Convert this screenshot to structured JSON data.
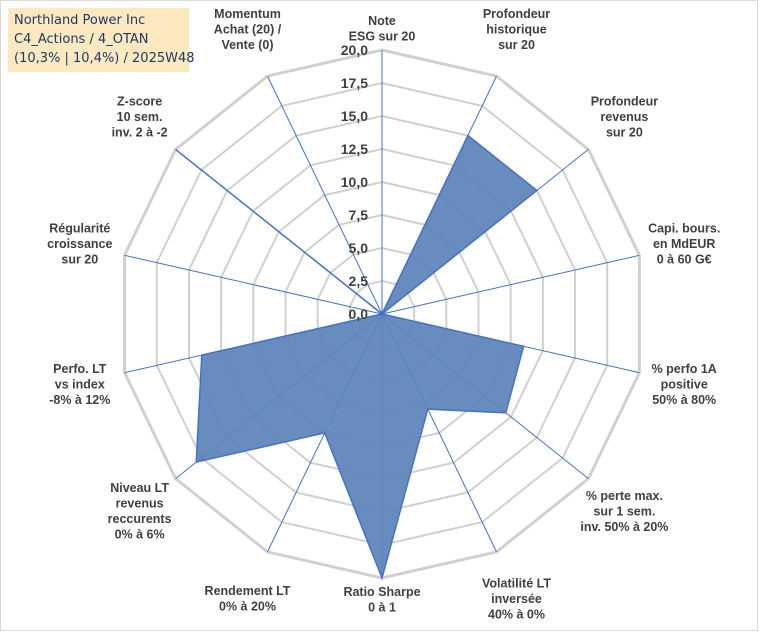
{
  "title": {
    "line1": "Northland Power Inc",
    "line2": "C4_Actions / 4_OTAN",
    "line3": "(10,3% | 10,4%) / 2025W48"
  },
  "colors": {
    "fill": "#5b82b8",
    "stroke": "#4472c4",
    "grid": "#d0d0d0",
    "spoke": "#4472c4"
  },
  "chart_data": {
    "type": "radar",
    "rmax": 20,
    "ticks": [
      "0,0",
      "2,5",
      "5,0",
      "7,5",
      "10,0",
      "12,5",
      "15,0",
      "17,5",
      "20,0"
    ],
    "axes": [
      {
        "label": [
          "Note",
          "ESG sur 20"
        ],
        "value": 0
      },
      {
        "label": [
          "Profondeur",
          "historique",
          "sur 20"
        ],
        "value": 15
      },
      {
        "label": [
          "Profondeur",
          "revenus",
          "sur 20"
        ],
        "value": 15
      },
      {
        "label": [
          "Capi. bours.",
          "en MdEUR",
          "0 à 60 G€"
        ],
        "value": 0
      },
      {
        "label": [
          "% perfo 1A",
          "positive",
          "50% à 80%"
        ],
        "value": 11
      },
      {
        "label": [
          "% perte max.",
          "sur 1 sem.",
          "inv. 50% à 20%"
        ],
        "value": 12
      },
      {
        "label": [
          "Volatilité LT",
          "inversée",
          "40% à 0%"
        ],
        "value": 8
      },
      {
        "label": [
          "Ratio Sharpe",
          "0 à 1"
        ],
        "value": 20
      },
      {
        "label": [
          "Rendement LT",
          "0% à 20%"
        ],
        "value": 10
      },
      {
        "label": [
          "Niveau LT",
          "revenus",
          "reccurents",
          "0% à 6%"
        ],
        "value": 18
      },
      {
        "label": [
          "Perfo. LT",
          "vs index",
          "-8% à 12%"
        ],
        "value": 14
      },
      {
        "label": [
          "Régularité",
          "croissance",
          "sur 20"
        ],
        "value": 0
      },
      {
        "label": [
          "Z-score",
          "10 sem.",
          "inv. 2 à -2"
        ],
        "value": 20
      },
      {
        "label": [
          "Momentum",
          "Achat (20) /",
          "Vente (0)"
        ],
        "value": 0
      }
    ]
  }
}
